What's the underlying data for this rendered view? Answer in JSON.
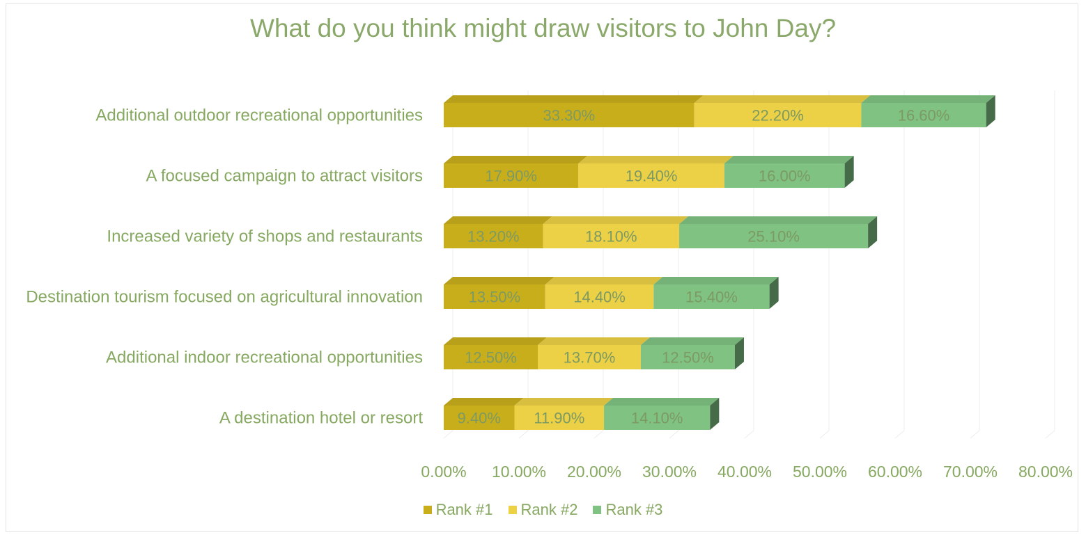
{
  "chart_data": {
    "type": "bar",
    "orientation": "horizontal",
    "stacked": true,
    "style": "3d",
    "title": "What do you think might draw visitors to John Day?",
    "categories": [
      "Additional outdoor recreational opportunities",
      "A focused campaign to attract visitors",
      "Increased variety of shops and restaurants",
      "Destination tourism focused on agricultural innovation",
      "Additional indoor recreational opportunities",
      "A destination hotel or resort"
    ],
    "series": [
      {
        "name": "Rank #1",
        "color": "#c9ae1c",
        "values": [
          33.3,
          17.9,
          13.2,
          13.5,
          12.5,
          9.4
        ],
        "labels": [
          "33.30%",
          "17.90%",
          "13.20%",
          "13.50%",
          "12.50%",
          "9.40%"
        ]
      },
      {
        "name": "Rank #2",
        "color": "#ecd046",
        "values": [
          22.2,
          19.4,
          18.1,
          14.4,
          13.7,
          11.9
        ],
        "labels": [
          "22.20%",
          "19.40%",
          "18.10%",
          "14.40%",
          "13.70%",
          "11.90%"
        ]
      },
      {
        "name": "Rank #3",
        "color": "#7fc282",
        "values": [
          16.6,
          16.0,
          25.1,
          15.4,
          12.5,
          14.1
        ],
        "labels": [
          "16.60%",
          "16.00%",
          "25.10%",
          "15.40%",
          "12.50%",
          "14.10%"
        ]
      }
    ],
    "xlim": [
      0,
      80
    ],
    "xticks": [
      0,
      10,
      20,
      30,
      40,
      50,
      60,
      70,
      80
    ],
    "xtick_labels": [
      "0.00%",
      "10.00%",
      "20.00%",
      "30.00%",
      "40.00%",
      "50.00%",
      "60.00%",
      "70.00%",
      "80.00%"
    ],
    "grid": "vertical",
    "legend_position": "bottom"
  }
}
